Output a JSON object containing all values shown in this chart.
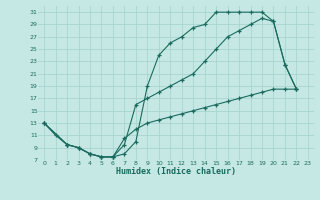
{
  "xlabel": "Humidex (Indice chaleur)",
  "bg_color": "#c5e8e5",
  "grid_color": "#a8d4d0",
  "line_color": "#1a6b5e",
  "xlim": [
    -0.5,
    23.5
  ],
  "ylim": [
    7,
    32
  ],
  "xticks": [
    0,
    1,
    2,
    3,
    4,
    5,
    6,
    7,
    8,
    9,
    10,
    11,
    12,
    13,
    14,
    15,
    16,
    17,
    18,
    19,
    20,
    21,
    22,
    23
  ],
  "yticks": [
    7,
    9,
    11,
    13,
    15,
    17,
    19,
    21,
    23,
    25,
    27,
    29,
    31
  ],
  "line1_x": [
    0,
    1,
    2,
    3,
    4,
    5,
    6,
    7,
    8,
    9,
    10,
    11,
    12,
    13,
    14,
    15,
    16,
    17,
    18,
    19,
    20,
    21,
    22
  ],
  "line1_y": [
    13,
    11,
    9.5,
    9,
    8,
    7.5,
    7.5,
    8,
    10,
    19,
    24,
    26,
    27,
    28.5,
    29,
    31,
    31,
    31,
    31,
    31,
    29.5,
    22.5,
    18.5
  ],
  "line2_x": [
    0,
    2,
    3,
    4,
    5,
    6,
    7,
    8,
    9,
    10,
    11,
    12,
    13,
    14,
    15,
    16,
    17,
    18,
    19,
    20,
    21,
    22
  ],
  "line2_y": [
    13,
    9.5,
    9,
    8,
    7.5,
    7.5,
    9.5,
    16,
    17,
    18,
    19,
    20,
    21,
    23,
    25,
    27,
    28,
    29,
    30,
    29.5,
    22.5,
    18.5
  ],
  "line3_x": [
    0,
    2,
    3,
    4,
    5,
    6,
    7,
    8,
    9,
    10,
    11,
    12,
    13,
    14,
    15,
    16,
    17,
    18,
    19,
    20,
    21,
    22
  ],
  "line3_y": [
    13,
    9.5,
    9,
    8,
    7.5,
    7.5,
    10.5,
    12,
    13,
    13.5,
    14,
    14.5,
    15,
    15.5,
    16,
    16.5,
    17,
    17.5,
    18,
    18.5,
    18.5,
    18.5
  ]
}
